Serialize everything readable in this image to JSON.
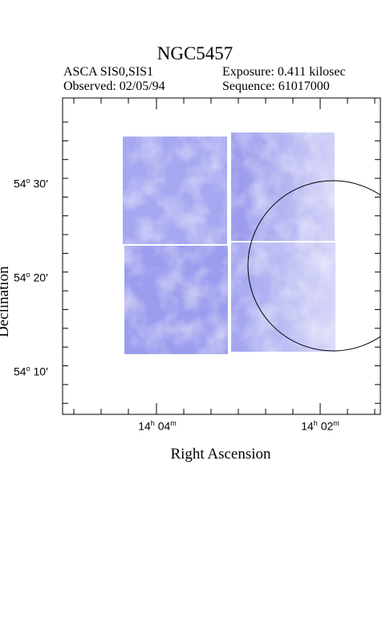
{
  "header": {
    "title": "NGC5457",
    "instrument": "ASCA SIS0,SIS1",
    "exposure": "Exposure: 0.411 kilosec",
    "observed": "Observed: 02/05/94",
    "sequence": "Sequence: 61017000"
  },
  "axes": {
    "xlabel": "Right Ascension",
    "ylabel": "Declination",
    "yticks": [
      {
        "deg": "54",
        "min": "30"
      },
      {
        "deg": "54",
        "min": "20"
      },
      {
        "deg": "54",
        "min": "10"
      }
    ],
    "xticks": [
      {
        "h": "14",
        "m": "04"
      },
      {
        "h": "14",
        "m": "02"
      }
    ]
  },
  "colors": {
    "image_tint": "#8e8ef0",
    "frame": "#000000"
  }
}
